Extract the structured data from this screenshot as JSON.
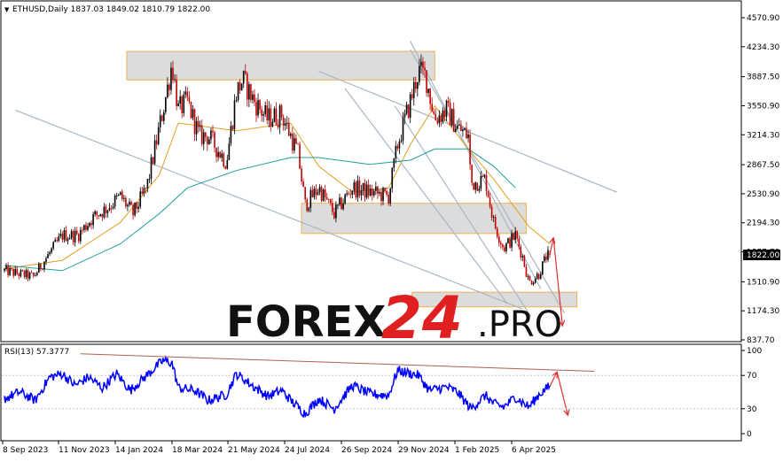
{
  "header": {
    "symbol_line": "ETHUSD,Daily  1837.03 1849.02 1810.79 1822.00"
  },
  "watermark": {
    "brand": "FOREX",
    "number": "24",
    "suffix": ".PRO"
  },
  "rsi_panel": {
    "label": "RSI(13) 57.3777"
  },
  "colors": {
    "bull_candle": "#000000",
    "bear_candle": "#c00000",
    "ma_fast": "#e0a020",
    "ma_slow": "#1e9e9e",
    "trendline": "#a8b6c4",
    "zone_fill": "#d8d8d8",
    "zone_border": "#f0b050",
    "arrow": "#e03030",
    "rsi_line": "#0000ff",
    "rsi_trend": "#b06050",
    "watermark_dark": "#111111",
    "watermark_red": "#e02020"
  },
  "chart_data": [
    {
      "type": "candlestick",
      "symbol": "ETHUSD",
      "timeframe": "Daily",
      "ohlc_last": {
        "open": 1837.03,
        "high": 1849.02,
        "low": 1810.79,
        "close": 1822.0
      },
      "current_price_label": "1822.00",
      "y_ticks": [
        "4570.90",
        "4234.30",
        "3887.50",
        "3550.90",
        "3214.30",
        "2867.50",
        "2530.90",
        "2194.30",
        "1857.70",
        "1510.90",
        "1174.30",
        "837.70"
      ],
      "ylim": [
        837.7,
        4570.9
      ],
      "x_ticks": [
        "8 Sep 2023",
        "11 Nov 2023",
        "14 Jan 2024",
        "18 Mar 2024",
        "21 May 2024",
        "24 Jul 2024",
        "26 Sep 2024",
        "29 Nov 2024",
        "1 Feb 2025",
        "6 Apr 2025"
      ],
      "close_path": [
        [
          "2023-09-08",
          1640
        ],
        [
          "2023-09-25",
          1600
        ],
        [
          "2023-10-10",
          1570
        ],
        [
          "2023-10-25",
          1800
        ],
        [
          "2023-11-11",
          2050
        ],
        [
          "2023-11-28",
          2050
        ],
        [
          "2023-12-14",
          2250
        ],
        [
          "2023-12-28",
          2350
        ],
        [
          "2024-01-14",
          2500
        ],
        [
          "2024-01-28",
          2300
        ],
        [
          "2024-02-12",
          2600
        ],
        [
          "2024-02-26",
          3300
        ],
        [
          "2024-03-05",
          3700
        ],
        [
          "2024-03-11",
          4050
        ],
        [
          "2024-03-18",
          3500
        ],
        [
          "2024-03-28",
          3600
        ],
        [
          "2024-04-10",
          3200
        ],
        [
          "2024-04-20",
          3200
        ],
        [
          "2024-05-10",
          2900
        ],
        [
          "2024-05-21",
          3700
        ],
        [
          "2024-05-28",
          3850
        ],
        [
          "2024-06-10",
          3600
        ],
        [
          "2024-06-24",
          3400
        ],
        [
          "2024-07-10",
          3450
        ],
        [
          "2024-07-20",
          3200
        ],
        [
          "2024-07-28",
          3000
        ],
        [
          "2024-08-05",
          2400
        ],
        [
          "2024-08-20",
          2600
        ],
        [
          "2024-09-06",
          2300
        ],
        [
          "2024-09-26",
          2600
        ],
        [
          "2024-10-15",
          2550
        ],
        [
          "2024-11-05",
          2500
        ],
        [
          "2024-11-15",
          3100
        ],
        [
          "2024-11-29",
          3600
        ],
        [
          "2024-12-08",
          3950
        ],
        [
          "2024-12-16",
          3900
        ],
        [
          "2024-12-26",
          3400
        ],
        [
          "2025-01-08",
          3500
        ],
        [
          "2025-01-20",
          3300
        ],
        [
          "2025-02-01",
          3200
        ],
        [
          "2025-02-04",
          2650
        ],
        [
          "2025-02-20",
          2700
        ],
        [
          "2025-03-01",
          2200
        ],
        [
          "2025-03-12",
          1900
        ],
        [
          "2025-03-25",
          2050
        ],
        [
          "2025-04-02",
          1800
        ],
        [
          "2025-04-09",
          1500
        ],
        [
          "2025-04-20",
          1600
        ],
        [
          "2025-04-28",
          1800
        ],
        [
          "2025-05-02",
          1822
        ]
      ],
      "ma_fast_path": [
        [
          "2023-09-08",
          1660
        ],
        [
          "2023-11-11",
          1760
        ],
        [
          "2024-01-14",
          2200
        ],
        [
          "2024-02-26",
          2750
        ],
        [
          "2024-03-18",
          3350
        ],
        [
          "2024-05-21",
          3260
        ],
        [
          "2024-07-20",
          3350
        ],
        [
          "2024-08-20",
          2850
        ],
        [
          "2024-09-26",
          2550
        ],
        [
          "2024-11-05",
          2600
        ],
        [
          "2024-11-29",
          3100
        ],
        [
          "2024-12-26",
          3550
        ],
        [
          "2025-02-01",
          3050
        ],
        [
          "2025-03-01",
          2700
        ],
        [
          "2025-04-09",
          2150
        ],
        [
          "2025-05-02",
          1950
        ]
      ],
      "ma_slow_path": [
        [
          "2023-09-08",
          1700
        ],
        [
          "2023-11-11",
          1640
        ],
        [
          "2024-01-14",
          1950
        ],
        [
          "2024-02-26",
          2300
        ],
        [
          "2024-03-28",
          2600
        ],
        [
          "2024-05-21",
          2800
        ],
        [
          "2024-07-20",
          2950
        ],
        [
          "2024-08-20",
          2950
        ],
        [
          "2024-10-15",
          2870
        ],
        [
          "2024-11-29",
          2920
        ],
        [
          "2024-12-26",
          3050
        ],
        [
          "2025-02-01",
          3050
        ],
        [
          "2025-03-01",
          2850
        ],
        [
          "2025-03-25",
          2600
        ]
      ],
      "zones": [
        {
          "from": "2024-01-21",
          "to": "2024-12-26",
          "low": 3850,
          "high": 4180
        },
        {
          "from": "2024-08-01",
          "to": "2025-04-06",
          "low": 2070,
          "high": 2420
        },
        {
          "from": "2024-12-01",
          "to": "2025-06-01",
          "low": 1220,
          "high": 1390
        }
      ],
      "trendlines": [
        [
          [
            "2023-09-20",
            3500
          ],
          [
            "2025-04-01",
            1200
          ]
        ],
        [
          [
            "2024-08-20",
            3950
          ],
          [
            "2025-07-15",
            2550
          ]
        ],
        [
          [
            "2024-11-29",
            4300
          ],
          [
            "2025-04-22",
            1430
          ]
        ],
        [
          [
            "2024-11-29",
            4200
          ],
          [
            "2025-05-18",
            1150
          ]
        ],
        [
          [
            "2024-09-18",
            3750
          ],
          [
            "2025-03-16",
            1260
          ]
        ],
        [
          [
            "2024-11-12",
            3550
          ],
          [
            "2025-04-11",
            1110
          ]
        ]
      ],
      "forecast_arrows": [
        [
          [
            "2025-05-02",
            1822
          ],
          [
            "2025-05-06",
            2020
          ]
        ],
        [
          [
            "2025-05-06",
            2020
          ],
          [
            "2025-05-16",
            1000
          ]
        ]
      ]
    },
    {
      "type": "line",
      "name": "RSI(13)",
      "last_value": 57.3777,
      "y_ticks": [
        "100",
        "70",
        "30",
        "0"
      ],
      "ylim": [
        0,
        100
      ],
      "keypoints": [
        [
          "2023-09-08",
          42
        ],
        [
          "2023-09-25",
          50
        ],
        [
          "2023-10-12",
          40
        ],
        [
          "2023-10-28",
          68
        ],
        [
          "2023-11-11",
          72
        ],
        [
          "2023-11-25",
          58
        ],
        [
          "2023-12-10",
          68
        ],
        [
          "2023-12-25",
          55
        ],
        [
          "2024-01-10",
          72
        ],
        [
          "2024-01-25",
          52
        ],
        [
          "2024-02-10",
          68
        ],
        [
          "2024-03-01",
          88
        ],
        [
          "2024-03-11",
          85
        ],
        [
          "2024-03-18",
          55
        ],
        [
          "2024-04-05",
          52
        ],
        [
          "2024-04-20",
          40
        ],
        [
          "2024-05-10",
          47
        ],
        [
          "2024-05-21",
          72
        ],
        [
          "2024-06-10",
          56
        ],
        [
          "2024-06-25",
          45
        ],
        [
          "2024-07-10",
          52
        ],
        [
          "2024-07-22",
          38
        ],
        [
          "2024-08-05",
          24
        ],
        [
          "2024-08-20",
          42
        ],
        [
          "2024-09-06",
          30
        ],
        [
          "2024-09-26",
          58
        ],
        [
          "2024-10-15",
          48
        ],
        [
          "2024-11-05",
          46
        ],
        [
          "2024-11-15",
          76
        ],
        [
          "2024-12-08",
          70
        ],
        [
          "2024-12-20",
          52
        ],
        [
          "2025-01-08",
          56
        ],
        [
          "2025-01-20",
          50
        ],
        [
          "2025-02-04",
          30
        ],
        [
          "2025-02-20",
          46
        ],
        [
          "2025-03-01",
          36
        ],
        [
          "2025-03-12",
          32
        ],
        [
          "2025-03-25",
          44
        ],
        [
          "2025-04-09",
          32
        ],
        [
          "2025-04-20",
          47
        ],
        [
          "2025-05-02",
          57.4
        ]
      ],
      "trendline": [
        [
          "2023-12-01",
          96
        ],
        [
          "2025-06-20",
          75
        ]
      ],
      "forecast_arrows": [
        [
          [
            "2025-05-02",
            57
          ],
          [
            "2025-05-10",
            74
          ]
        ],
        [
          [
            "2025-05-10",
            74
          ],
          [
            "2025-05-22",
            22
          ]
        ]
      ]
    }
  ]
}
